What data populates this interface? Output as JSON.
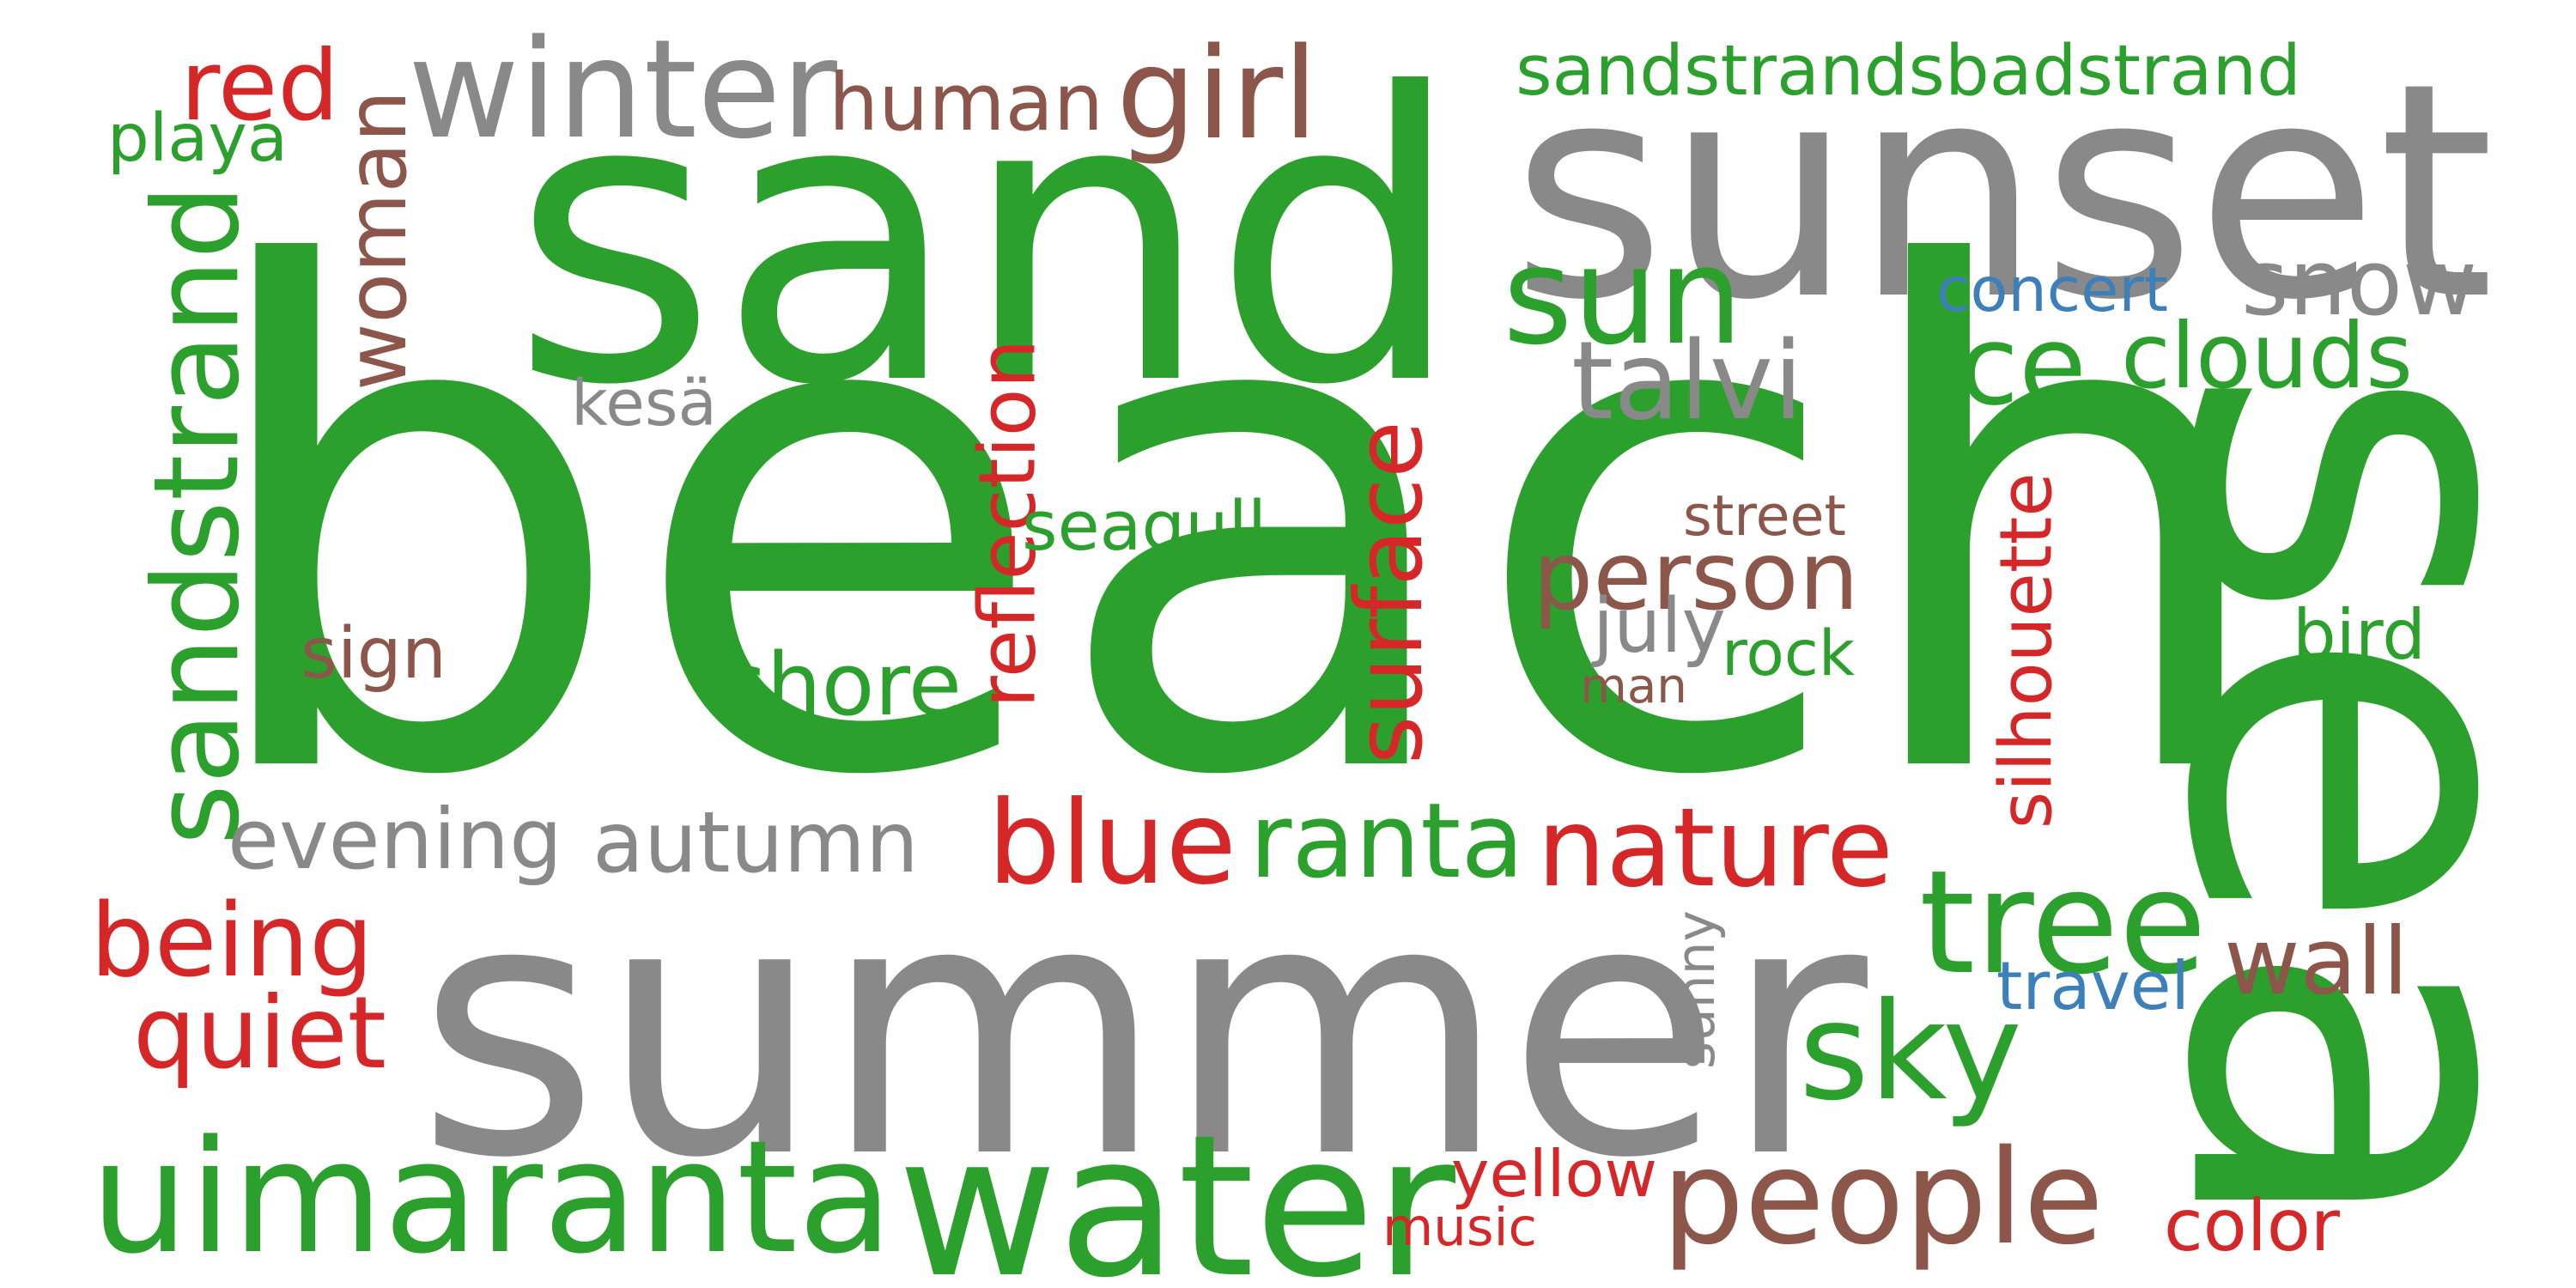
{
  "colors": {
    "green": "#2ca02c",
    "gray": "#898989",
    "brown": "#8c564b",
    "red": "#d62728",
    "blue": "#3d7fb8"
  },
  "words": [
    {
      "text": "beach",
      "color": "green"
    },
    {
      "text": "summer",
      "color": "gray"
    },
    {
      "text": "sand",
      "color": "green"
    },
    {
      "text": "sea",
      "color": "green"
    },
    {
      "text": "sunset",
      "color": "gray"
    },
    {
      "text": "water",
      "color": "green"
    },
    {
      "text": "uimaranta",
      "color": "green"
    },
    {
      "text": "people",
      "color": "brown"
    },
    {
      "text": "winter",
      "color": "gray"
    },
    {
      "text": "sandstrand",
      "color": "green"
    },
    {
      "text": "sky",
      "color": "green"
    },
    {
      "text": "sun",
      "color": "green"
    },
    {
      "text": "tree",
      "color": "green"
    },
    {
      "text": "nature",
      "color": "red"
    },
    {
      "text": "human",
      "color": "brown"
    },
    {
      "text": "girl",
      "color": "brown"
    },
    {
      "text": "person",
      "color": "brown"
    },
    {
      "text": "snow",
      "color": "gray"
    },
    {
      "text": "woman",
      "color": "brown"
    },
    {
      "text": "being",
      "color": "red"
    },
    {
      "text": "autumn",
      "color": "gray"
    },
    {
      "text": "ranta",
      "color": "green"
    },
    {
      "text": "blue",
      "color": "red"
    },
    {
      "text": "surface",
      "color": "red"
    },
    {
      "text": "evening",
      "color": "gray"
    },
    {
      "text": "quiet",
      "color": "red"
    },
    {
      "text": "ice",
      "color": "green"
    },
    {
      "text": "clouds",
      "color": "green"
    },
    {
      "text": "shore",
      "color": "green"
    },
    {
      "text": "sandstrandsbadstrand",
      "color": "green"
    },
    {
      "text": "talvi",
      "color": "gray"
    },
    {
      "text": "red",
      "color": "red"
    },
    {
      "text": "wall",
      "color": "brown"
    },
    {
      "text": "reflection",
      "color": "red"
    },
    {
      "text": "silhouette",
      "color": "red"
    },
    {
      "text": "playa",
      "color": "green"
    },
    {
      "text": "kesä",
      "color": "gray"
    },
    {
      "text": "concert",
      "color": "blue"
    },
    {
      "text": "seagull",
      "color": "green"
    },
    {
      "text": "street",
      "color": "brown"
    },
    {
      "text": "sign",
      "color": "brown"
    },
    {
      "text": "july",
      "color": "gray"
    },
    {
      "text": "rock",
      "color": "green"
    },
    {
      "text": "man",
      "color": "brown"
    },
    {
      "text": "bird",
      "color": "green"
    },
    {
      "text": "sunny",
      "color": "gray"
    },
    {
      "text": "travel",
      "color": "blue"
    },
    {
      "text": "yellow",
      "color": "red"
    },
    {
      "text": "music",
      "color": "red"
    },
    {
      "text": "color",
      "color": "red"
    }
  ]
}
